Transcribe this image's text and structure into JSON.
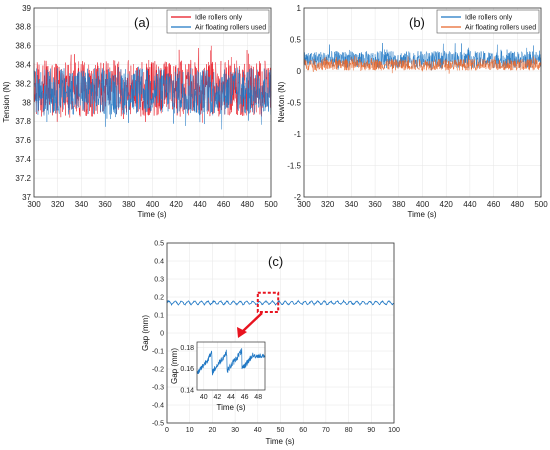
{
  "chart_data": [
    {
      "id": "a",
      "type": "line",
      "panel_label": "(a)",
      "xlabel": "Time (s)",
      "ylabel": "Tension (N)",
      "xlim": [
        300,
        500
      ],
      "ylim": [
        37,
        39
      ],
      "xticks": [
        300,
        320,
        340,
        360,
        380,
        400,
        420,
        440,
        460,
        480,
        500
      ],
      "yticks": [
        37,
        37.2,
        37.4,
        37.6,
        37.8,
        38,
        38.2,
        38.4,
        38.6,
        38.8,
        39
      ],
      "legend_position": "top-right",
      "series": [
        {
          "name": "Idle rollers only",
          "color": "#e8131f",
          "center": 38.15,
          "typical_range": [
            37.85,
            38.45
          ],
          "peak_range": [
            37.75,
            38.6
          ]
        },
        {
          "name": "Air floating rollers used",
          "color": "#1f77c4",
          "center": 38.12,
          "typical_range": [
            37.85,
            38.35
          ],
          "peak_range": [
            37.7,
            38.4
          ]
        }
      ]
    },
    {
      "id": "b",
      "type": "line",
      "panel_label": "(b)",
      "xlabel": "Time (s)",
      "ylabel": "Newton (N)",
      "xlim": [
        300,
        500
      ],
      "ylim": [
        -2,
        1
      ],
      "xticks": [
        300,
        320,
        340,
        360,
        380,
        400,
        420,
        440,
        460,
        480,
        500
      ],
      "yticks": [
        -2,
        -1.5,
        -1,
        -0.5,
        0,
        0.5,
        1
      ],
      "legend_position": "top-right",
      "series": [
        {
          "name": "Idle rollers only",
          "color": "#1f77c4",
          "center": 0.18,
          "typical_range": [
            0.05,
            0.32
          ],
          "peak_range": [
            0.0,
            0.45
          ]
        },
        {
          "name": "Air floating rollers used",
          "color": "#e8662a",
          "center": 0.1,
          "typical_range": [
            0.02,
            0.2
          ],
          "peak_range": [
            -0.05,
            0.25
          ]
        }
      ]
    },
    {
      "id": "c",
      "type": "line",
      "panel_label": "(c)",
      "xlabel": "Time (s)",
      "ylabel": "Gap (mm)",
      "xlim": [
        0,
        100
      ],
      "ylim": [
        -0.5,
        0.5
      ],
      "xticks": [
        0,
        10,
        20,
        30,
        40,
        50,
        60,
        70,
        80,
        90,
        100
      ],
      "yticks": [
        -0.5,
        -0.4,
        -0.3,
        -0.2,
        -0.1,
        0,
        0.1,
        0.2,
        0.3,
        0.4,
        0.5
      ],
      "series": [
        {
          "color": "#1f77c4",
          "center": 0.168,
          "typical_range": [
            0.155,
            0.18
          ]
        }
      ],
      "highlight_window": {
        "x": [
          40,
          49
        ],
        "y": [
          0.15,
          0.19
        ],
        "color": "#e8131f"
      },
      "inset": {
        "xlabel": "Time (s)",
        "ylabel": "Gap (mm)",
        "xlim": [
          39,
          49
        ],
        "ylim": [
          0.14,
          0.185
        ],
        "xticks": [
          40,
          42,
          44,
          46,
          48
        ],
        "yticks": [
          0.14,
          0.16,
          0.18
        ]
      }
    }
  ]
}
